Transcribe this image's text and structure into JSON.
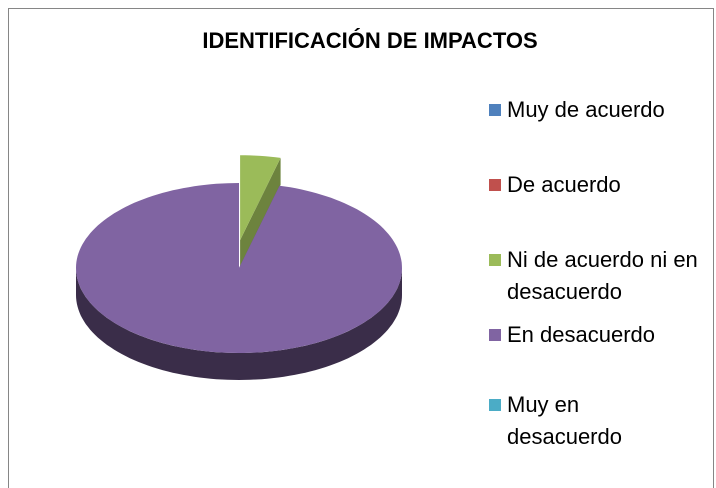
{
  "chart_data": {
    "type": "pie3d",
    "title": "IDENTIFICACIÓN DE IMPACTOS",
    "categories": [
      "Muy de acuerdo",
      "De acuerdo",
      "Ni de acuerdo ni en desacuerdo",
      "En desacuerdo",
      "Muy en desacuerdo"
    ],
    "values": [
      0,
      0,
      4,
      96,
      0
    ],
    "colors": [
      "#4f81bd",
      "#c0504d",
      "#9bbb59",
      "#8064a2",
      "#4bacc6"
    ],
    "exploded": [
      false,
      false,
      true,
      false,
      false
    ],
    "legend": "right"
  }
}
